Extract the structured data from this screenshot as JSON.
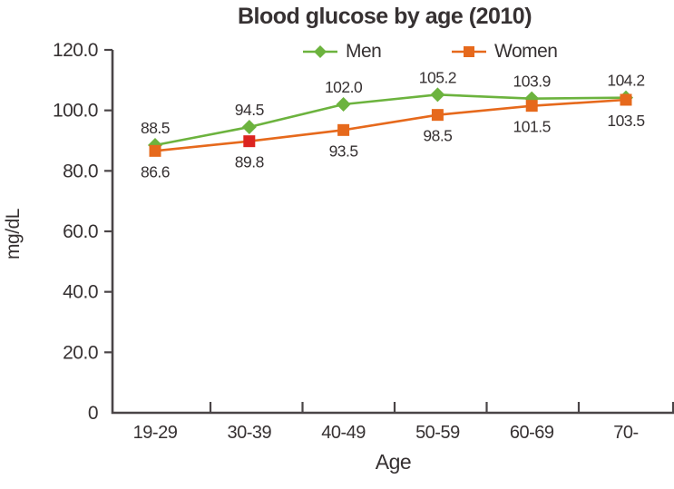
{
  "title": "Blood glucose by age (2010)",
  "y_axis": {
    "label": "mg/dL",
    "tick_labels": [
      "120.0",
      "100.0",
      "80.0",
      "60.0",
      "40.0",
      "20.0",
      "0"
    ],
    "tick_values": [
      120,
      100,
      80,
      60,
      40,
      20,
      0
    ]
  },
  "x_axis": {
    "label": "Age",
    "categories": [
      "19-29",
      "30-39",
      "40-49",
      "50-59",
      "60-69",
      "70-"
    ]
  },
  "legend": {
    "items": [
      {
        "label": "Men",
        "marker": "diamond",
        "color": "#6cb33e"
      },
      {
        "label": "Women",
        "marker": "square",
        "color": "#e6691c"
      }
    ],
    "position": "top"
  },
  "colors": {
    "men_line": "#6cb33e",
    "women_line": "#e6691c",
    "women_red_marker": "#dc2420",
    "axis": "#4a4547",
    "text": "#363132"
  },
  "chart_data": {
    "type": "line",
    "title": "Blood glucose by age (2010)",
    "xlabel": "Age",
    "ylabel": "mg/dL",
    "ylim": [
      0,
      120
    ],
    "grid": false,
    "legend_position": "top",
    "categories": [
      "19-29",
      "30-39",
      "40-49",
      "50-59",
      "60-69",
      "70-"
    ],
    "series": [
      {
        "name": "Men",
        "marker": "diamond",
        "color": "#6cb33e",
        "values": [
          88.5,
          94.5,
          102.0,
          105.2,
          103.9,
          104.2
        ],
        "value_labels": [
          "88.5",
          "94.5",
          "102.0",
          "105.2",
          "103.9",
          "104.2"
        ],
        "label_position": "above"
      },
      {
        "name": "Women",
        "marker": "square",
        "color": "#e6691c",
        "values": [
          86.6,
          89.8,
          93.5,
          98.5,
          101.5,
          103.5
        ],
        "value_labels": [
          "86.6",
          "89.8",
          "93.5",
          "98.5",
          "101.5",
          "103.5"
        ],
        "label_position": "below",
        "marker_colors": [
          "#e6691c",
          "#dc2420",
          "#e6691c",
          "#e6691c",
          "#e6691c",
          "#e6691c"
        ]
      }
    ]
  }
}
